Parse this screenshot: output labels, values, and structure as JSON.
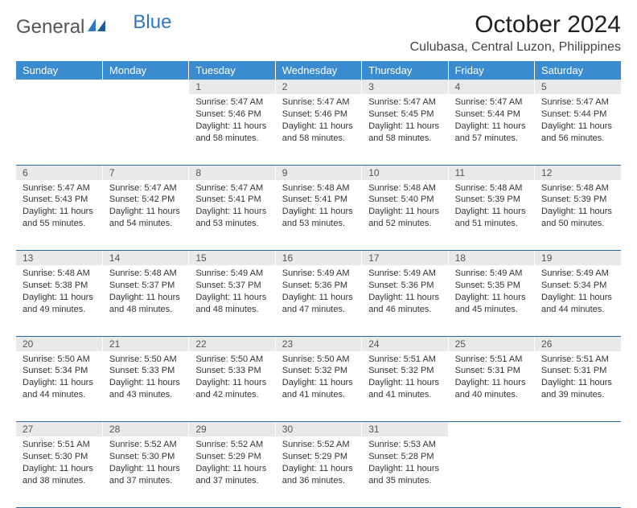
{
  "brand": {
    "text1": "General",
    "text2": "Blue"
  },
  "title": "October 2024",
  "location": "Culubasa, Central Luzon, Philippines",
  "colors": {
    "header_bg": "#3b8bd0",
    "header_text": "#ffffff",
    "daynum_bg": "#e9e9e9",
    "row_border": "#2a6aa8",
    "brand_gray": "#555555",
    "brand_blue": "#2f78c4",
    "body_text": "#333333"
  },
  "typography": {
    "title_fontsize": 30,
    "location_fontsize": 16,
    "dayhead_fontsize": 13,
    "daynum_fontsize": 12,
    "cell_fontsize": 11
  },
  "weekdays": [
    "Sunday",
    "Monday",
    "Tuesday",
    "Wednesday",
    "Thursday",
    "Friday",
    "Saturday"
  ],
  "weeks": [
    {
      "nums": [
        "",
        "",
        "1",
        "2",
        "3",
        "4",
        "5"
      ],
      "cells": [
        {
          "empty": true
        },
        {
          "empty": true
        },
        {
          "sunrise": "Sunrise: 5:47 AM",
          "sunset": "Sunset: 5:46 PM",
          "day1": "Daylight: 11 hours",
          "day2": "and 58 minutes."
        },
        {
          "sunrise": "Sunrise: 5:47 AM",
          "sunset": "Sunset: 5:46 PM",
          "day1": "Daylight: 11 hours",
          "day2": "and 58 minutes."
        },
        {
          "sunrise": "Sunrise: 5:47 AM",
          "sunset": "Sunset: 5:45 PM",
          "day1": "Daylight: 11 hours",
          "day2": "and 58 minutes."
        },
        {
          "sunrise": "Sunrise: 5:47 AM",
          "sunset": "Sunset: 5:44 PM",
          "day1": "Daylight: 11 hours",
          "day2": "and 57 minutes."
        },
        {
          "sunrise": "Sunrise: 5:47 AM",
          "sunset": "Sunset: 5:44 PM",
          "day1": "Daylight: 11 hours",
          "day2": "and 56 minutes."
        }
      ]
    },
    {
      "nums": [
        "6",
        "7",
        "8",
        "9",
        "10",
        "11",
        "12"
      ],
      "cells": [
        {
          "sunrise": "Sunrise: 5:47 AM",
          "sunset": "Sunset: 5:43 PM",
          "day1": "Daylight: 11 hours",
          "day2": "and 55 minutes."
        },
        {
          "sunrise": "Sunrise: 5:47 AM",
          "sunset": "Sunset: 5:42 PM",
          "day1": "Daylight: 11 hours",
          "day2": "and 54 minutes."
        },
        {
          "sunrise": "Sunrise: 5:47 AM",
          "sunset": "Sunset: 5:41 PM",
          "day1": "Daylight: 11 hours",
          "day2": "and 53 minutes."
        },
        {
          "sunrise": "Sunrise: 5:48 AM",
          "sunset": "Sunset: 5:41 PM",
          "day1": "Daylight: 11 hours",
          "day2": "and 53 minutes."
        },
        {
          "sunrise": "Sunrise: 5:48 AM",
          "sunset": "Sunset: 5:40 PM",
          "day1": "Daylight: 11 hours",
          "day2": "and 52 minutes."
        },
        {
          "sunrise": "Sunrise: 5:48 AM",
          "sunset": "Sunset: 5:39 PM",
          "day1": "Daylight: 11 hours",
          "day2": "and 51 minutes."
        },
        {
          "sunrise": "Sunrise: 5:48 AM",
          "sunset": "Sunset: 5:39 PM",
          "day1": "Daylight: 11 hours",
          "day2": "and 50 minutes."
        }
      ]
    },
    {
      "nums": [
        "13",
        "14",
        "15",
        "16",
        "17",
        "18",
        "19"
      ],
      "cells": [
        {
          "sunrise": "Sunrise: 5:48 AM",
          "sunset": "Sunset: 5:38 PM",
          "day1": "Daylight: 11 hours",
          "day2": "and 49 minutes."
        },
        {
          "sunrise": "Sunrise: 5:48 AM",
          "sunset": "Sunset: 5:37 PM",
          "day1": "Daylight: 11 hours",
          "day2": "and 48 minutes."
        },
        {
          "sunrise": "Sunrise: 5:49 AM",
          "sunset": "Sunset: 5:37 PM",
          "day1": "Daylight: 11 hours",
          "day2": "and 48 minutes."
        },
        {
          "sunrise": "Sunrise: 5:49 AM",
          "sunset": "Sunset: 5:36 PM",
          "day1": "Daylight: 11 hours",
          "day2": "and 47 minutes."
        },
        {
          "sunrise": "Sunrise: 5:49 AM",
          "sunset": "Sunset: 5:36 PM",
          "day1": "Daylight: 11 hours",
          "day2": "and 46 minutes."
        },
        {
          "sunrise": "Sunrise: 5:49 AM",
          "sunset": "Sunset: 5:35 PM",
          "day1": "Daylight: 11 hours",
          "day2": "and 45 minutes."
        },
        {
          "sunrise": "Sunrise: 5:49 AM",
          "sunset": "Sunset: 5:34 PM",
          "day1": "Daylight: 11 hours",
          "day2": "and 44 minutes."
        }
      ]
    },
    {
      "nums": [
        "20",
        "21",
        "22",
        "23",
        "24",
        "25",
        "26"
      ],
      "cells": [
        {
          "sunrise": "Sunrise: 5:50 AM",
          "sunset": "Sunset: 5:34 PM",
          "day1": "Daylight: 11 hours",
          "day2": "and 44 minutes."
        },
        {
          "sunrise": "Sunrise: 5:50 AM",
          "sunset": "Sunset: 5:33 PM",
          "day1": "Daylight: 11 hours",
          "day2": "and 43 minutes."
        },
        {
          "sunrise": "Sunrise: 5:50 AM",
          "sunset": "Sunset: 5:33 PM",
          "day1": "Daylight: 11 hours",
          "day2": "and 42 minutes."
        },
        {
          "sunrise": "Sunrise: 5:50 AM",
          "sunset": "Sunset: 5:32 PM",
          "day1": "Daylight: 11 hours",
          "day2": "and 41 minutes."
        },
        {
          "sunrise": "Sunrise: 5:51 AM",
          "sunset": "Sunset: 5:32 PM",
          "day1": "Daylight: 11 hours",
          "day2": "and 41 minutes."
        },
        {
          "sunrise": "Sunrise: 5:51 AM",
          "sunset": "Sunset: 5:31 PM",
          "day1": "Daylight: 11 hours",
          "day2": "and 40 minutes."
        },
        {
          "sunrise": "Sunrise: 5:51 AM",
          "sunset": "Sunset: 5:31 PM",
          "day1": "Daylight: 11 hours",
          "day2": "and 39 minutes."
        }
      ]
    },
    {
      "nums": [
        "27",
        "28",
        "29",
        "30",
        "31",
        "",
        ""
      ],
      "cells": [
        {
          "sunrise": "Sunrise: 5:51 AM",
          "sunset": "Sunset: 5:30 PM",
          "day1": "Daylight: 11 hours",
          "day2": "and 38 minutes."
        },
        {
          "sunrise": "Sunrise: 5:52 AM",
          "sunset": "Sunset: 5:30 PM",
          "day1": "Daylight: 11 hours",
          "day2": "and 37 minutes."
        },
        {
          "sunrise": "Sunrise: 5:52 AM",
          "sunset": "Sunset: 5:29 PM",
          "day1": "Daylight: 11 hours",
          "day2": "and 37 minutes."
        },
        {
          "sunrise": "Sunrise: 5:52 AM",
          "sunset": "Sunset: 5:29 PM",
          "day1": "Daylight: 11 hours",
          "day2": "and 36 minutes."
        },
        {
          "sunrise": "Sunrise: 5:53 AM",
          "sunset": "Sunset: 5:28 PM",
          "day1": "Daylight: 11 hours",
          "day2": "and 35 minutes."
        },
        {
          "empty": true
        },
        {
          "empty": true
        }
      ]
    }
  ]
}
